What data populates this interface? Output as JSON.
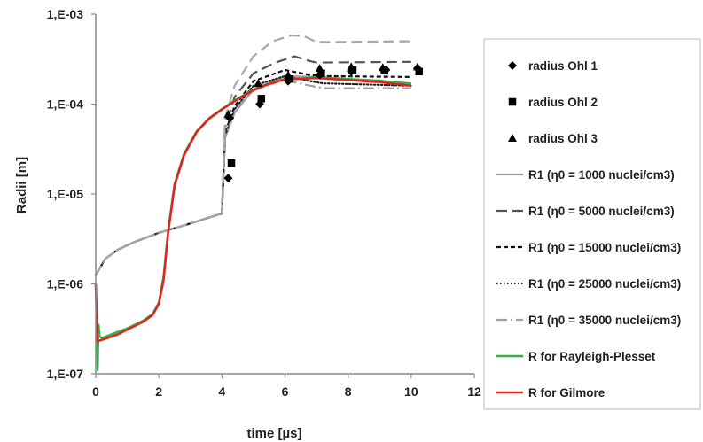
{
  "chart_data": {
    "type": "line",
    "xlabel": "time [µs]",
    "ylabel": "Radii [m]",
    "xlim": [
      0,
      12
    ],
    "ylim": [
      1e-07,
      0.001
    ],
    "yscale": "log",
    "x_ticks": [
      0,
      2,
      4,
      6,
      8,
      10,
      12
    ],
    "y_ticks": [
      {
        "value": 1e-07,
        "label": "1,E-07"
      },
      {
        "value": 1e-06,
        "label": "1,E-06"
      },
      {
        "value": 1e-05,
        "label": "1,E-05"
      },
      {
        "value": 0.0001,
        "label": "1,E-04"
      },
      {
        "value": 0.001,
        "label": "1,E-03"
      }
    ],
    "grid": false,
    "legend_position": "right",
    "scatter_series": [
      {
        "name": "radius Ohl 1",
        "marker": "diamond",
        "points": [
          [
            4.2,
            1.5e-05
          ],
          [
            4.25,
            7e-05
          ],
          [
            5.2,
            0.0001
          ],
          [
            6.1,
            0.00018
          ],
          [
            7.1,
            0.00021
          ],
          [
            8.1,
            0.00023
          ],
          [
            9.2,
            0.00024
          ],
          [
            10.2,
            0.00025
          ]
        ]
      },
      {
        "name": "radius Ohl 2",
        "marker": "square",
        "points": [
          [
            4.3,
            2.2e-05
          ],
          [
            5.25,
            0.000115
          ],
          [
            6.15,
            0.00019
          ],
          [
            7.15,
            0.00022
          ],
          [
            8.15,
            0.00024
          ],
          [
            9.15,
            0.000235
          ],
          [
            10.25,
            0.00023
          ]
        ]
      },
      {
        "name": "radius Ohl 3",
        "marker": "triangle",
        "points": [
          [
            4.2,
            7.7e-05
          ],
          [
            5.15,
            0.00017
          ],
          [
            6.1,
            0.00021
          ],
          [
            7.1,
            0.00025
          ],
          [
            8.1,
            0.00026
          ],
          [
            9.1,
            0.000255
          ],
          [
            10.2,
            0.00026
          ]
        ]
      }
    ],
    "series": [
      {
        "name": "R1 (η0 = 1000 nuclei/cm3)",
        "color": "#a0a0a0",
        "dash": "solid",
        "points": [
          [
            0,
            1.25e-06
          ],
          [
            0.3,
            1.9e-06
          ],
          [
            0.7,
            2.4e-06
          ],
          [
            1.2,
            2.9e-06
          ],
          [
            2,
            3.7e-06
          ],
          [
            3,
            4.7e-06
          ],
          [
            3.95,
            6e-06
          ],
          [
            4.0,
            6e-06
          ],
          [
            4.1,
            4.2e-05
          ],
          [
            4.4,
            8e-05
          ],
          [
            5,
            0.000145
          ],
          [
            6,
            0.000205
          ],
          [
            7,
            0.0002
          ],
          [
            8,
            0.00019
          ],
          [
            9,
            0.00018
          ],
          [
            10,
            0.00017
          ]
        ]
      },
      {
        "name": "R1 (η0 = 5000 nuclei/cm3)",
        "color": "#555555",
        "dash": "long",
        "points": [
          [
            0,
            1.25e-06
          ],
          [
            0.3,
            1.9e-06
          ],
          [
            0.7,
            2.4e-06
          ],
          [
            1.2,
            2.9e-06
          ],
          [
            2,
            3.7e-06
          ],
          [
            3,
            4.7e-06
          ],
          [
            3.95,
            6e-06
          ],
          [
            4.0,
            6e-06
          ],
          [
            4.1,
            5.5e-05
          ],
          [
            4.4,
            0.00012
          ],
          [
            5,
            0.00022
          ],
          [
            5.7,
            0.00029
          ],
          [
            6.3,
            0.00034
          ],
          [
            6.8,
            0.0003
          ],
          [
            7,
            0.00029
          ],
          [
            10,
            0.000295
          ]
        ]
      },
      {
        "name": "R1 (η0 = 15000 nuclei/cm3)",
        "color": "#111111",
        "dash": "short",
        "points": [
          [
            0,
            1.25e-06
          ],
          [
            0.3,
            1.9e-06
          ],
          [
            0.7,
            2.4e-06
          ],
          [
            1.2,
            2.9e-06
          ],
          [
            2,
            3.7e-06
          ],
          [
            3,
            4.7e-06
          ],
          [
            3.95,
            6e-06
          ],
          [
            4.0,
            6e-06
          ],
          [
            4.1,
            4.8e-05
          ],
          [
            4.4,
            9.5e-05
          ],
          [
            5,
            0.00018
          ],
          [
            6,
            0.00024
          ],
          [
            6.8,
            0.00021
          ],
          [
            7.2,
            0.000205
          ],
          [
            10,
            0.0002
          ]
        ]
      },
      {
        "name": "R1 (η0 = 25000 nuclei/cm3)",
        "color": "#222222",
        "dash": "dotted",
        "points": [
          [
            0,
            1.25e-06
          ],
          [
            0.3,
            1.9e-06
          ],
          [
            0.7,
            2.4e-06
          ],
          [
            1.2,
            2.9e-06
          ],
          [
            2,
            3.7e-06
          ],
          [
            3,
            4.7e-06
          ],
          [
            3.95,
            6e-06
          ],
          [
            4.0,
            6e-06
          ],
          [
            4.1,
            4.5e-05
          ],
          [
            4.4,
            8.8e-05
          ],
          [
            5,
            0.00016
          ],
          [
            6,
            0.000205
          ],
          [
            6.8,
            0.00018
          ],
          [
            7.2,
            0.00017
          ],
          [
            10,
            0.00016
          ]
        ]
      },
      {
        "name": "R1 (η0 = 35000 nuclei/cm3)",
        "color": "#a0a0a0",
        "dash": "dashdot",
        "points": [
          [
            0,
            1.25e-06
          ],
          [
            0.3,
            1.9e-06
          ],
          [
            0.7,
            2.4e-06
          ],
          [
            1.2,
            2.9e-06
          ],
          [
            2,
            3.7e-06
          ],
          [
            3,
            4.7e-06
          ],
          [
            3.95,
            6e-06
          ],
          [
            4.0,
            6e-06
          ],
          [
            4.1,
            4.3e-05
          ],
          [
            4.4,
            8.2e-05
          ],
          [
            5,
            0.000145
          ],
          [
            6,
            0.000185
          ],
          [
            6.8,
            0.00016
          ],
          [
            7.2,
            0.00015
          ],
          [
            10,
            0.00015
          ]
        ]
      },
      {
        "name": "R1 (η0 = 35000 nuclei/cm3) upper",
        "color": "#a8a8a8",
        "dash": "long",
        "hide_legend": true,
        "points": [
          [
            0,
            1.25e-06
          ],
          [
            0.3,
            1.9e-06
          ],
          [
            0.7,
            2.4e-06
          ],
          [
            1.2,
            2.9e-06
          ],
          [
            2,
            3.7e-06
          ],
          [
            3,
            4.7e-06
          ],
          [
            3.95,
            6e-06
          ],
          [
            4.0,
            6e-06
          ],
          [
            4.1,
            7e-05
          ],
          [
            4.4,
            0.00016
          ],
          [
            5,
            0.00034
          ],
          [
            5.6,
            0.0005
          ],
          [
            6.2,
            0.00058
          ],
          [
            6.6,
            0.00057
          ],
          [
            7,
            0.00049
          ],
          [
            7.4,
            0.00049
          ],
          [
            10,
            0.0005
          ]
        ]
      },
      {
        "name": "R for Rayleigh-Plesset",
        "color": "#2db34a",
        "dash": "solid",
        "width": 2.5,
        "points": [
          [
            0,
            1e-06
          ],
          [
            0.03,
            4e-07
          ],
          [
            0.06,
            1.1e-07
          ],
          [
            0.09,
            3.5e-07
          ],
          [
            0.12,
            2.6e-07
          ],
          [
            0.2,
            2.5e-07
          ],
          [
            0.5,
            2.75e-07
          ],
          [
            1,
            3.2e-07
          ],
          [
            1.5,
            3.9e-07
          ],
          [
            1.8,
            4.6e-07
          ],
          [
            2.0,
            6.2e-07
          ],
          [
            2.15,
            1.2e-06
          ],
          [
            2.3,
            4e-06
          ],
          [
            2.5,
            1.3e-05
          ],
          [
            2.8,
            2.8e-05
          ],
          [
            3.2,
            5e-05
          ],
          [
            3.6,
            7e-05
          ],
          [
            4,
            8.8e-05
          ],
          [
            4.5,
            0.000115
          ],
          [
            5,
            0.000145
          ],
          [
            5.5,
            0.00017
          ],
          [
            6,
            0.00019
          ],
          [
            7,
            0.000198
          ],
          [
            8,
            0.00019
          ],
          [
            9,
            0.000182
          ],
          [
            10,
            0.000168
          ]
        ]
      },
      {
        "name": "R for Gilmore",
        "color": "#e8201c",
        "dash": "solid",
        "width": 2.5,
        "points": [
          [
            0,
            1e-06
          ],
          [
            0.05,
            2.3e-07
          ],
          [
            0.3,
            2.45e-07
          ],
          [
            0.7,
            2.75e-07
          ],
          [
            1,
            3.1e-07
          ],
          [
            1.5,
            3.8e-07
          ],
          [
            1.8,
            4.5e-07
          ],
          [
            2.0,
            6e-07
          ],
          [
            2.15,
            1.1e-06
          ],
          [
            2.3,
            3.8e-06
          ],
          [
            2.5,
            1.25e-05
          ],
          [
            2.8,
            2.7e-05
          ],
          [
            3.2,
            4.9e-05
          ],
          [
            3.6,
            6.9e-05
          ],
          [
            4,
            8.7e-05
          ],
          [
            4.5,
            0.000113
          ],
          [
            5,
            0.000142
          ],
          [
            5.5,
            0.000168
          ],
          [
            6,
            0.000188
          ],
          [
            7,
            0.000195
          ],
          [
            8,
            0.000185
          ],
          [
            9,
            0.000175
          ],
          [
            10,
            0.00016
          ]
        ]
      }
    ]
  }
}
